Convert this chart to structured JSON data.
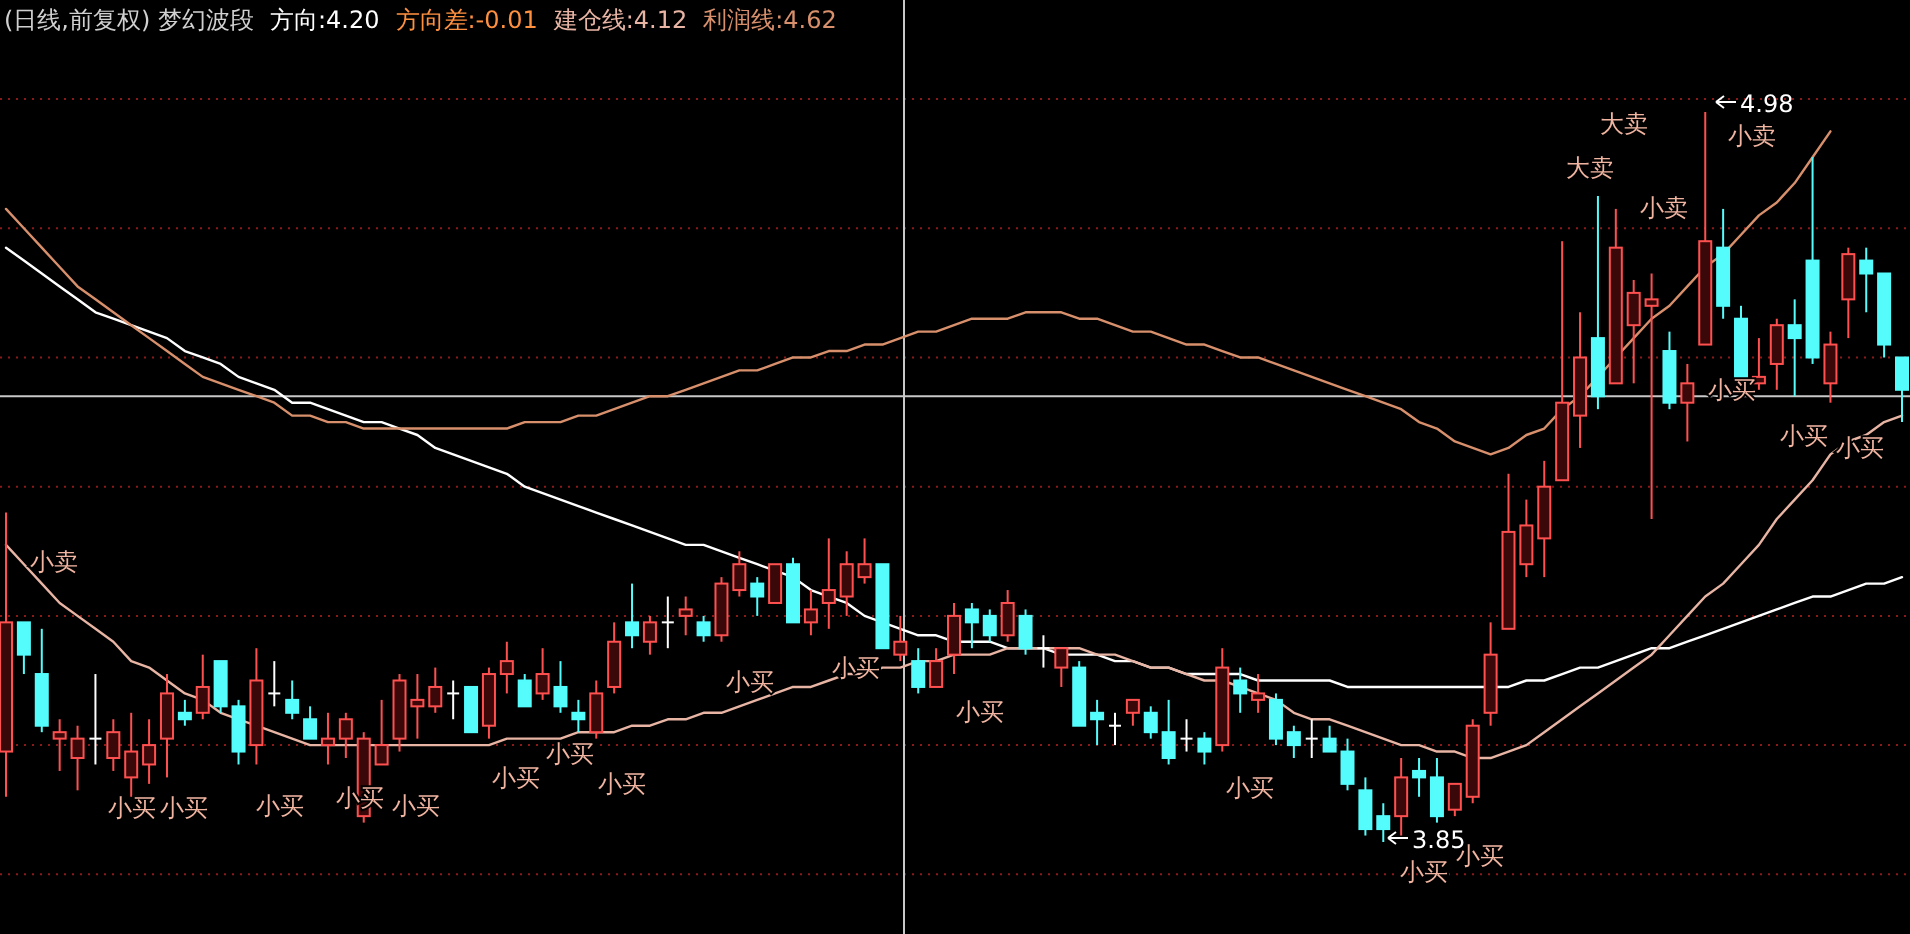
{
  "chart_data": {
    "type": "candlestick",
    "title": "(日线,前复权) 梦幻波段",
    "categories": [
      null,
      null,
      null,
      null,
      null,
      null,
      null,
      null,
      null,
      null,
      null,
      null,
      null,
      null,
      null,
      null,
      null,
      null,
      null,
      null,
      null,
      null,
      null,
      null,
      null,
      null,
      null,
      null,
      null,
      null,
      null,
      null,
      null,
      null,
      null,
      null,
      null,
      null,
      null,
      null,
      null,
      null,
      null,
      null,
      null,
      null,
      null,
      null,
      null,
      null,
      null,
      null,
      null,
      null,
      null,
      null,
      null,
      null,
      null,
      null,
      null,
      null,
      null,
      null,
      null,
      null,
      null,
      null,
      null,
      null,
      null,
      null,
      null,
      null,
      null,
      null,
      null,
      null,
      null,
      null,
      null,
      null,
      null,
      null,
      null,
      null,
      null,
      null,
      null,
      null,
      null,
      null,
      null,
      null,
      null,
      null,
      null,
      null,
      null,
      null,
      null,
      null,
      null,
      null,
      null,
      null,
      null
    ],
    "ohlc": [
      [
        3.99,
        4.36,
        3.92,
        4.19
      ],
      [
        4.19,
        4.19,
        4.11,
        4.14
      ],
      [
        4.11,
        4.18,
        4.02,
        4.03
      ],
      [
        4.01,
        4.04,
        3.96,
        4.02
      ],
      [
        3.98,
        4.03,
        3.93,
        4.01
      ],
      [
        4.01,
        4.11,
        3.97,
        4.01
      ],
      [
        3.98,
        4.04,
        3.96,
        4.02
      ],
      [
        3.95,
        4.05,
        3.92,
        3.99
      ],
      [
        3.97,
        4.04,
        3.94,
        4.0
      ],
      [
        4.01,
        4.11,
        3.95,
        4.08
      ],
      [
        4.05,
        4.07,
        4.03,
        4.04
      ],
      [
        4.05,
        4.14,
        4.04,
        4.09
      ],
      [
        4.13,
        4.13,
        4.05,
        4.06
      ],
      [
        4.06,
        4.07,
        3.97,
        3.99
      ],
      [
        4.0,
        4.15,
        3.97,
        4.1
      ],
      [
        4.08,
        4.13,
        4.06,
        4.08
      ],
      [
        4.07,
        4.1,
        4.04,
        4.05
      ],
      [
        4.04,
        4.06,
        4.01,
        4.01
      ],
      [
        4.0,
        4.05,
        3.97,
        4.01
      ],
      [
        4.01,
        4.05,
        3.98,
        4.04
      ],
      [
        3.89,
        4.02,
        3.88,
        4.01
      ],
      [
        3.97,
        4.07,
        3.97,
        4.0
      ],
      [
        4.01,
        4.11,
        3.99,
        4.1
      ],
      [
        4.06,
        4.11,
        4.01,
        4.07
      ],
      [
        4.06,
        4.12,
        4.05,
        4.09
      ],
      [
        4.08,
        4.1,
        4.04,
        4.08
      ],
      [
        4.09,
        4.09,
        4.02,
        4.02
      ],
      [
        4.03,
        4.12,
        4.01,
        4.11
      ],
      [
        4.11,
        4.16,
        4.08,
        4.13
      ],
      [
        4.1,
        4.11,
        4.06,
        4.06
      ],
      [
        4.08,
        4.15,
        4.07,
        4.11
      ],
      [
        4.09,
        4.13,
        4.05,
        4.06
      ],
      [
        4.05,
        4.07,
        4.02,
        4.04
      ],
      [
        4.02,
        4.1,
        4.01,
        4.08
      ],
      [
        4.09,
        4.19,
        4.08,
        4.16
      ],
      [
        4.19,
        4.25,
        4.15,
        4.17
      ],
      [
        4.16,
        4.2,
        4.14,
        4.19
      ],
      [
        4.19,
        4.23,
        4.15,
        4.19
      ],
      [
        4.2,
        4.23,
        4.17,
        4.21
      ],
      [
        4.19,
        4.2,
        4.16,
        4.17
      ],
      [
        4.17,
        4.26,
        4.16,
        4.25
      ],
      [
        4.24,
        4.3,
        4.23,
        4.28
      ],
      [
        4.25,
        4.26,
        4.2,
        4.23
      ],
      [
        4.22,
        4.28,
        4.22,
        4.28
      ],
      [
        4.28,
        4.29,
        4.19,
        4.19
      ],
      [
        4.19,
        4.24,
        4.17,
        4.21
      ],
      [
        4.22,
        4.32,
        4.18,
        4.24
      ],
      [
        4.23,
        4.3,
        4.2,
        4.28
      ],
      [
        4.26,
        4.32,
        4.25,
        4.28
      ],
      [
        4.28,
        4.28,
        4.15,
        4.15
      ],
      [
        4.14,
        4.2,
        4.13,
        4.16
      ],
      [
        4.13,
        4.15,
        4.08,
        4.09
      ],
      [
        4.09,
        4.15,
        4.09,
        4.13
      ],
      [
        4.14,
        4.22,
        4.11,
        4.2
      ],
      [
        4.21,
        4.22,
        4.15,
        4.19
      ],
      [
        4.2,
        4.21,
        4.16,
        4.17
      ],
      [
        4.17,
        4.24,
        4.16,
        4.22
      ],
      [
        4.2,
        4.21,
        4.14,
        4.15
      ],
      [
        4.15,
        4.17,
        4.12,
        4.15
      ],
      [
        4.12,
        4.15,
        4.09,
        4.15
      ],
      [
        4.12,
        4.13,
        4.03,
        4.03
      ],
      [
        4.05,
        4.07,
        4.0,
        4.04
      ],
      [
        4.03,
        4.05,
        4.0,
        4.03
      ],
      [
        4.05,
        4.07,
        4.03,
        4.07
      ],
      [
        4.05,
        4.06,
        4.01,
        4.02
      ],
      [
        4.02,
        4.07,
        3.97,
        3.98
      ],
      [
        4.01,
        4.04,
        3.99,
        4.01
      ],
      [
        4.01,
        4.02,
        3.97,
        3.99
      ],
      [
        4.0,
        4.15,
        3.99,
        4.12
      ],
      [
        4.1,
        4.12,
        4.05,
        4.08
      ],
      [
        4.07,
        4.11,
        4.05,
        4.08
      ],
      [
        4.07,
        4.08,
        4.0,
        4.01
      ],
      [
        4.02,
        4.03,
        3.98,
        4.0
      ],
      [
        4.01,
        4.04,
        3.98,
        4.01
      ],
      [
        4.01,
        4.03,
        3.99,
        3.99
      ],
      [
        3.99,
        4.01,
        3.93,
        3.94
      ],
      [
        3.93,
        3.95,
        3.86,
        3.87
      ],
      [
        3.89,
        3.91,
        3.85,
        3.87
      ],
      [
        3.89,
        3.98,
        3.86,
        3.95
      ],
      [
        3.96,
        3.98,
        3.92,
        3.95
      ],
      [
        3.95,
        3.98,
        3.88,
        3.89
      ],
      [
        3.9,
        3.94,
        3.89,
        3.94
      ],
      [
        3.92,
        4.04,
        3.91,
        4.03
      ],
      [
        4.05,
        4.19,
        4.03,
        4.14
      ],
      [
        4.18,
        4.42,
        4.18,
        4.33
      ],
      [
        4.28,
        4.38,
        4.26,
        4.34
      ],
      [
        4.32,
        4.44,
        4.26,
        4.4
      ],
      [
        4.41,
        4.78,
        4.41,
        4.53
      ],
      [
        4.51,
        4.67,
        4.46,
        4.6
      ],
      [
        4.63,
        4.85,
        4.52,
        4.54
      ],
      [
        4.56,
        4.83,
        4.56,
        4.77
      ],
      [
        4.65,
        4.72,
        4.56,
        4.7
      ],
      [
        4.68,
        4.73,
        4.35,
        4.69
      ],
      [
        4.61,
        4.64,
        4.52,
        4.53
      ],
      [
        4.53,
        4.59,
        4.47,
        4.56
      ],
      [
        4.62,
        4.98,
        4.62,
        4.78
      ],
      [
        4.77,
        4.83,
        4.66,
        4.68
      ],
      [
        4.66,
        4.68,
        4.57,
        4.57
      ],
      [
        4.56,
        4.63,
        4.55,
        4.57
      ],
      [
        4.59,
        4.66,
        4.55,
        4.65
      ],
      [
        4.65,
        4.69,
        4.54,
        4.63
      ],
      [
        4.75,
        4.91,
        4.59,
        4.6
      ],
      [
        4.56,
        4.64,
        4.53,
        4.62
      ],
      [
        4.69,
        4.77,
        4.63,
        4.76
      ],
      [
        4.75,
        4.77,
        4.67,
        4.73
      ],
      [
        4.73,
        4.73,
        4.6,
        4.62
      ],
      [
        4.6,
        4.6,
        4.5,
        4.55
      ]
    ],
    "series": [
      {
        "name": "方向:4.20",
        "type": "line",
        "color": "#ffffff",
        "values": [
          4.77,
          4.75,
          4.73,
          4.71,
          4.69,
          4.67,
          4.66,
          4.65,
          4.64,
          4.63,
          4.61,
          4.6,
          4.59,
          4.57,
          4.56,
          4.55,
          4.53,
          4.53,
          4.52,
          4.51,
          4.5,
          4.5,
          4.49,
          4.48,
          4.46,
          4.45,
          4.44,
          4.43,
          4.42,
          4.4,
          4.39,
          4.38,
          4.37,
          4.36,
          4.35,
          4.34,
          4.33,
          4.32,
          4.31,
          4.31,
          4.3,
          4.29,
          4.28,
          4.27,
          4.26,
          4.24,
          4.23,
          4.22,
          4.2,
          4.19,
          4.18,
          4.17,
          4.17,
          4.16,
          4.16,
          4.16,
          4.15,
          4.15,
          4.15,
          4.14,
          4.14,
          4.14,
          4.13,
          4.13,
          4.12,
          4.12,
          4.11,
          4.11,
          4.11,
          4.11,
          4.1,
          4.1,
          4.1,
          4.1,
          4.1,
          4.09,
          4.09,
          4.09,
          4.09,
          4.09,
          4.09,
          4.09,
          4.09,
          4.09,
          4.09,
          4.1,
          4.1,
          4.11,
          4.12,
          4.12,
          4.13,
          4.14,
          4.15,
          4.15,
          4.16,
          4.17,
          4.18,
          4.19,
          4.2,
          4.21,
          4.22,
          4.23,
          4.23,
          4.24,
          4.25,
          4.25,
          4.26
        ]
      },
      {
        "name": "建仓线:4.12",
        "type": "line",
        "color": "#e8b4a4",
        "values": [
          4.31,
          4.28,
          4.25,
          4.22,
          4.2,
          4.18,
          4.16,
          4.13,
          4.12,
          4.1,
          4.08,
          4.07,
          4.05,
          4.04,
          4.03,
          4.02,
          4.01,
          4.0,
          4.0,
          4.0,
          4.0,
          4.0,
          4.0,
          4.0,
          4.0,
          4.0,
          4.0,
          4.0,
          4.01,
          4.01,
          4.01,
          4.01,
          4.02,
          4.02,
          4.02,
          4.03,
          4.03,
          4.04,
          4.04,
          4.05,
          4.05,
          4.06,
          4.07,
          4.08,
          4.09,
          4.09,
          4.1,
          4.11,
          4.11,
          4.12,
          4.12,
          4.13,
          4.13,
          4.14,
          4.14,
          4.14,
          4.15,
          4.15,
          4.15,
          4.15,
          4.15,
          4.14,
          4.14,
          4.13,
          4.12,
          4.12,
          4.11,
          4.1,
          4.1,
          4.09,
          4.08,
          4.07,
          4.05,
          4.04,
          4.04,
          4.03,
          4.02,
          4.01,
          4.0,
          4.0,
          3.99,
          3.99,
          3.98,
          3.98,
          3.99,
          4.0,
          4.02,
          4.04,
          4.06,
          4.08,
          4.1,
          4.12,
          4.14,
          4.17,
          4.2,
          4.23,
          4.25,
          4.28,
          4.31,
          4.35,
          4.38,
          4.41,
          4.45,
          4.47,
          4.48,
          4.5,
          4.51
        ]
      },
      {
        "name": "利润线:4.62",
        "type": "line",
        "color": "#d8906c",
        "values": [
          4.83,
          4.8,
          4.77,
          4.74,
          4.71,
          4.69,
          4.67,
          4.65,
          4.63,
          4.61,
          4.59,
          4.57,
          4.56,
          4.55,
          4.54,
          4.53,
          4.51,
          4.51,
          4.5,
          4.5,
          4.49,
          4.49,
          4.49,
          4.49,
          4.49,
          4.49,
          4.49,
          4.49,
          4.49,
          4.5,
          4.5,
          4.5,
          4.51,
          4.51,
          4.52,
          4.53,
          4.54,
          4.54,
          4.55,
          4.56,
          4.57,
          4.58,
          4.58,
          4.59,
          4.6,
          4.6,
          4.61,
          4.61,
          4.62,
          4.62,
          4.63,
          4.64,
          4.64,
          4.65,
          4.66,
          4.66,
          4.66,
          4.67,
          4.67,
          4.67,
          4.66,
          4.66,
          4.65,
          4.64,
          4.64,
          4.63,
          4.62,
          4.62,
          4.61,
          4.6,
          4.6,
          4.59,
          4.58,
          4.57,
          4.56,
          4.55,
          4.54,
          4.53,
          4.52,
          4.5,
          4.49,
          4.47,
          4.46,
          4.45,
          4.46,
          4.48,
          4.49,
          4.52,
          4.54,
          4.57,
          4.6,
          4.63,
          4.66,
          4.68,
          4.71,
          4.74,
          4.76,
          4.79,
          4.82,
          4.84,
          4.87,
          4.91,
          4.95,
          null,
          null,
          null,
          null
        ]
      }
    ],
    "annotations": [
      "方向差:-0.01",
      "小卖",
      "小买",
      "小买",
      "小买",
      "小买",
      "小买",
      "小买",
      "小买",
      "小买",
      "小买",
      "小买",
      "小买",
      "小买",
      "小买",
      "小买",
      "大卖",
      "大卖",
      "小卖",
      "小卖",
      "小买",
      "小买",
      "小买",
      "4.98",
      "3.85"
    ],
    "yticks": [
      {
        "value": 5.0,
        "label": null
      },
      {
        "value": 4.8,
        "label": null
      },
      {
        "value": 4.6,
        "label": null
      },
      {
        "value": 4.4,
        "label": null
      },
      {
        "value": 4.2,
        "label": null
      },
      {
        "value": 4.0,
        "label": null
      },
      {
        "value": 3.8,
        "label": null
      }
    ],
    "grid": "y",
    "ref_lines": [
      {
        "axis": "y",
        "value": 4.54,
        "color": "#c8c8c8"
      }
    ]
  }
}
